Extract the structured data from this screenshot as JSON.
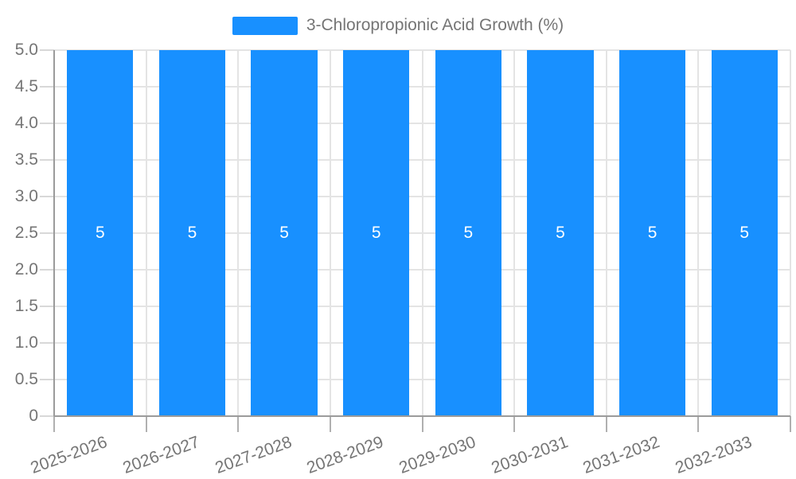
{
  "chart_data": {
    "type": "bar",
    "title": "3-Chloropropionic Acid Growth (%)",
    "xlabel": "",
    "ylabel": "",
    "categories": [
      "2025-2026",
      "2026-2027",
      "2027-2028",
      "2028-2029",
      "2029-2030",
      "2030-2031",
      "2031-2032",
      "2032-2033"
    ],
    "values": [
      5,
      5,
      5,
      5,
      5,
      5,
      5,
      5
    ],
    "bar_labels": [
      "5",
      "5",
      "5",
      "5",
      "5",
      "5",
      "5",
      "5"
    ],
    "ylim": [
      0,
      5
    ],
    "ytick_step": 0.5,
    "yticks": [
      "5.0",
      "4.5",
      "4.0",
      "3.5",
      "3.0",
      "2.5",
      "2.0",
      "1.5",
      "1.0",
      "0.5",
      "0"
    ],
    "legend_position": "top",
    "grid": true,
    "colors": {
      "bar": "#1890ff",
      "grid": "#e4e4e4",
      "axis": "#9b9b9b",
      "tick_x": "#b0b0b0",
      "tick_y": "#d8d8d8",
      "label_text": "#757575",
      "bar_label": "#ffffff",
      "background": "#ffffff"
    }
  }
}
